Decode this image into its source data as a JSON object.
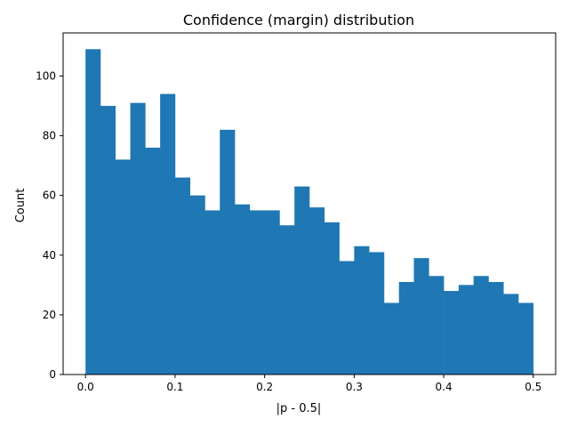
{
  "chart_data": {
    "type": "bar",
    "title": "Confidence (margin) distribution",
    "xlabel": "|p - 0.5|",
    "ylabel": "Count",
    "bin_range": [
      0.0,
      0.5
    ],
    "values": [
      109,
      90,
      72,
      91,
      76,
      94,
      66,
      60,
      55,
      82,
      57,
      55,
      55,
      50,
      63,
      56,
      51,
      38,
      43,
      41,
      24,
      31,
      39,
      33,
      28,
      30,
      33,
      31,
      27,
      24
    ],
    "xlim": [
      -0.025,
      0.525
    ],
    "ylim": [
      0,
      114.45
    ],
    "xticks": [
      0.0,
      0.1,
      0.2,
      0.3,
      0.4,
      0.5
    ],
    "xtick_labels": [
      "0.0",
      "0.1",
      "0.2",
      "0.3",
      "0.4",
      "0.5"
    ],
    "yticks": [
      0,
      20,
      40,
      60,
      80,
      100
    ],
    "ytick_labels": [
      "0",
      "20",
      "40",
      "60",
      "80",
      "100"
    ],
    "grid": false,
    "legend": "none",
    "bar_color": "#1f77b4"
  }
}
